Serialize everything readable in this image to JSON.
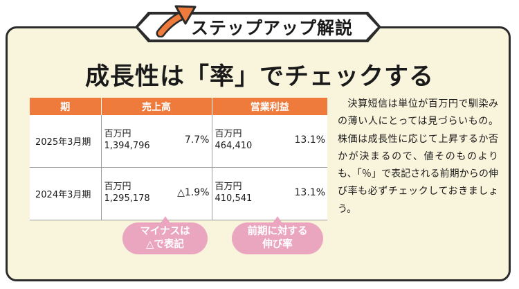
{
  "banner": {
    "title": "ステップアップ解説"
  },
  "headline": "成長性は「率」でチェックする",
  "table": {
    "headers": [
      "期",
      "売上高",
      "営業利益"
    ],
    "rows": [
      {
        "period": "2025年3月期",
        "sales": {
          "unit": "百万円",
          "value": "1,394,796",
          "rate": "7.7%"
        },
        "profit": {
          "unit": "百万円",
          "value": "464,410",
          "rate": "13.1%"
        }
      },
      {
        "period": "2024年3月期",
        "sales": {
          "unit": "百万円",
          "value": "1,295,178",
          "rate": "△1.9%"
        },
        "profit": {
          "unit": "百万円",
          "value": "410,541",
          "rate": "13.1%"
        }
      }
    ]
  },
  "callouts": {
    "minus": {
      "line1": "マイナスは",
      "line2": "△で表記"
    },
    "growth": {
      "line1": "前期に対する",
      "line2": "伸び率"
    }
  },
  "explanation": "　決算短信は単位が百万円で馴染みの薄い人にとっては見づらいもの。株価は成長性に応じて上昇するか否かが決まるので、値そのものよりも、「％」で表記される前期からの伸び率も必ずチェックしておきましょう。",
  "colors": {
    "accent": "#ee7a3c",
    "panel": "#f9f4dc",
    "bubble": "#eba6bf"
  }
}
